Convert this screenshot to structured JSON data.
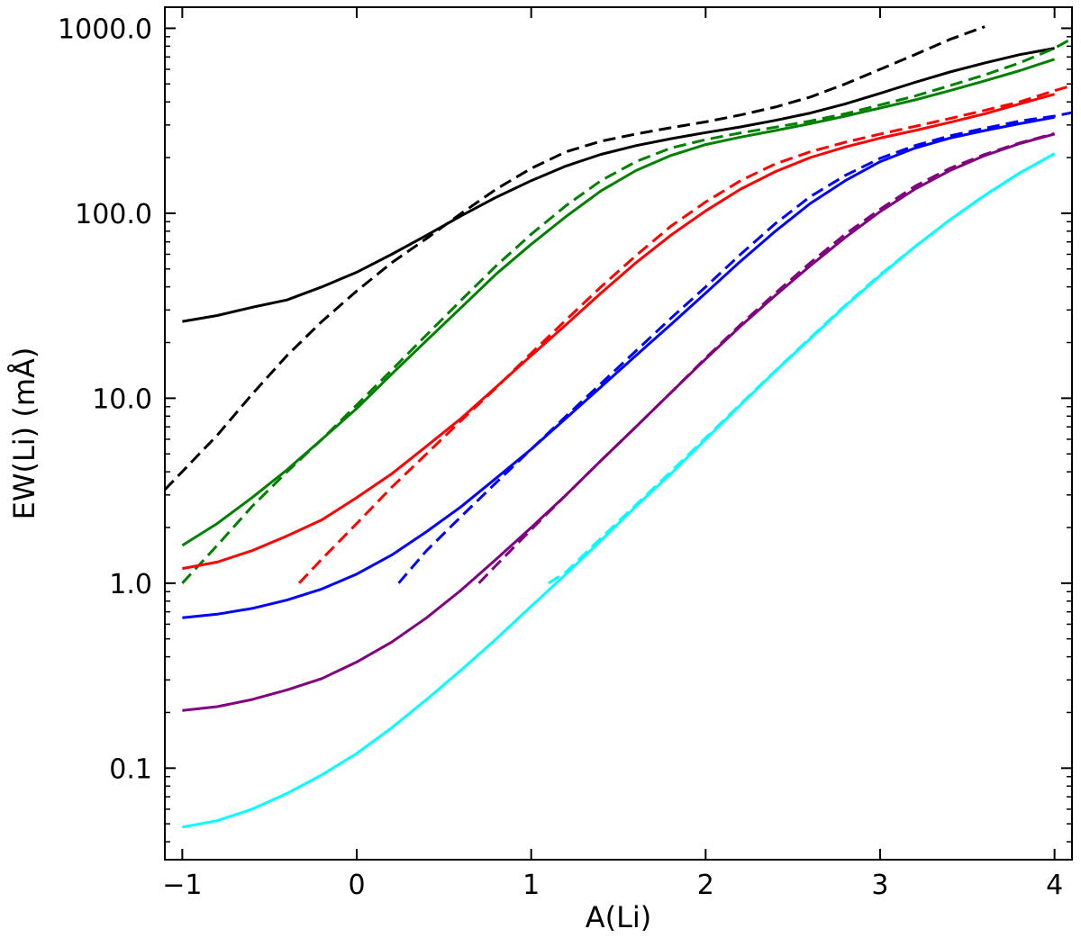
{
  "chart_data": {
    "type": "line",
    "title": "",
    "xlabel": "A(Li)",
    "ylabel": "EW(Li) (mÅ)",
    "xlim": [
      -1.1,
      4.1
    ],
    "ylim": [
      0.032,
      1300
    ],
    "yscale": "log",
    "grid": false,
    "legend": "none",
    "xticks": [
      -1,
      0,
      1,
      2,
      3,
      4
    ],
    "xtick_labels": [
      "−1",
      "0",
      "1",
      "2",
      "3",
      "4"
    ],
    "yticks": [
      0.1,
      1,
      10,
      100,
      1000
    ],
    "ytick_labels": [
      "0.1",
      "1.0",
      "10.0",
      "100.0",
      "1000.0"
    ],
    "series": [
      {
        "color": "#000000",
        "style": "solid",
        "x": [
          -1,
          -0.8,
          -0.6,
          -0.4,
          -0.2,
          0,
          0.2,
          0.4,
          0.6,
          0.8,
          1.0,
          1.2,
          1.4,
          1.6,
          1.8,
          2.0,
          2.2,
          2.4,
          2.6,
          2.8,
          3.0,
          3.2,
          3.4,
          3.6,
          3.8,
          4.0
        ],
        "y": [
          26,
          28,
          31,
          34,
          40,
          48,
          60,
          76,
          97,
          122,
          150,
          180,
          208,
          232,
          253,
          273,
          293,
          318,
          348,
          390,
          445,
          510,
          580,
          650,
          720,
          780
        ]
      },
      {
        "color": "#000000",
        "style": "dashed",
        "x": [
          -1.1,
          -0.8,
          -0.6,
          -0.4,
          -0.2,
          0,
          0.2,
          0.4,
          0.6,
          0.8,
          1.0,
          1.2,
          1.4,
          1.6,
          1.8,
          2.0,
          2.2,
          2.4,
          2.6,
          2.8,
          3.0,
          3.2,
          3.4,
          3.6
        ],
        "y": [
          3.2,
          6.3,
          10.5,
          17,
          26,
          38,
          54,
          73,
          100,
          135,
          175,
          215,
          245,
          268,
          290,
          312,
          340,
          375,
          425,
          500,
          600,
          720,
          870,
          1020
        ]
      },
      {
        "color": "#008000",
        "style": "solid",
        "x": [
          -1,
          -0.8,
          -0.6,
          -0.4,
          -0.2,
          0,
          0.2,
          0.4,
          0.6,
          0.8,
          1.0,
          1.2,
          1.4,
          1.6,
          1.8,
          2.0,
          2.2,
          2.4,
          2.6,
          2.8,
          3.0,
          3.2,
          3.4,
          3.6,
          3.8,
          4.0
        ],
        "y": [
          1.6,
          2.1,
          2.9,
          4.1,
          6.0,
          8.8,
          13.5,
          20.5,
          31,
          47,
          68,
          96,
          132,
          170,
          205,
          235,
          258,
          280,
          305,
          335,
          370,
          410,
          460,
          520,
          590,
          680
        ]
      },
      {
        "color": "#008000",
        "style": "dashed",
        "x": [
          -1,
          -0.8,
          -0.6,
          -0.4,
          -0.2,
          0,
          0.2,
          0.4,
          0.6,
          0.8,
          1.0,
          1.2,
          1.4,
          1.6,
          1.8,
          2.0,
          2.2,
          2.4,
          2.6,
          2.8,
          3.0,
          3.2,
          3.4,
          3.6,
          3.8,
          4.0,
          4.1
        ],
        "y": [
          1.0,
          1.6,
          2.6,
          4.0,
          6.0,
          9.2,
          14.2,
          22,
          34,
          52,
          77,
          110,
          150,
          190,
          225,
          250,
          272,
          292,
          315,
          345,
          385,
          430,
          490,
          560,
          650,
          780,
          880
        ]
      },
      {
        "color": "#ff0000",
        "style": "solid",
        "x": [
          -1,
          -0.8,
          -0.6,
          -0.4,
          -0.2,
          0,
          0.2,
          0.4,
          0.6,
          0.8,
          1.0,
          1.2,
          1.4,
          1.6,
          1.8,
          2.0,
          2.2,
          2.4,
          2.6,
          2.8,
          3.0,
          3.2,
          3.4,
          3.6,
          3.8,
          4.0
        ],
        "y": [
          1.2,
          1.3,
          1.5,
          1.8,
          2.2,
          2.9,
          3.9,
          5.5,
          7.8,
          11.5,
          17,
          25,
          37,
          54,
          76,
          103,
          135,
          168,
          200,
          228,
          255,
          280,
          310,
          345,
          390,
          440
        ]
      },
      {
        "color": "#ff0000",
        "style": "dashed",
        "x": [
          -0.33,
          -0.2,
          0,
          0.2,
          0.4,
          0.6,
          0.8,
          1.0,
          1.2,
          1.4,
          1.6,
          1.8,
          2.0,
          2.2,
          2.4,
          2.6,
          2.8,
          3.0,
          3.2,
          3.4,
          3.6,
          3.8,
          4.0,
          4.1
        ],
        "y": [
          1.0,
          1.35,
          2.1,
          3.3,
          5.0,
          7.6,
          11.4,
          17.5,
          26.5,
          40,
          59,
          85,
          115,
          150,
          185,
          215,
          242,
          268,
          295,
          325,
          360,
          400,
          460,
          490
        ]
      },
      {
        "color": "#0000ff",
        "style": "solid",
        "x": [
          -1,
          -0.8,
          -0.6,
          -0.4,
          -0.2,
          0,
          0.2,
          0.4,
          0.6,
          0.8,
          1.0,
          1.2,
          1.4,
          1.6,
          1.8,
          2.0,
          2.2,
          2.4,
          2.6,
          2.8,
          3.0,
          3.2,
          3.4,
          3.6,
          3.8,
          4.0
        ],
        "y": [
          0.65,
          0.68,
          0.73,
          0.81,
          0.93,
          1.12,
          1.42,
          1.9,
          2.6,
          3.7,
          5.3,
          7.8,
          11.5,
          17,
          25,
          37,
          55,
          80,
          113,
          150,
          190,
          225,
          255,
          280,
          305,
          330
        ]
      },
      {
        "color": "#0000ff",
        "style": "dashed",
        "x": [
          0.24,
          0.4,
          0.6,
          0.8,
          1.0,
          1.2,
          1.4,
          1.6,
          1.8,
          2.0,
          2.2,
          2.4,
          2.6,
          2.8,
          3.0,
          3.2,
          3.4,
          3.6,
          3.8,
          4.0,
          4.1
        ],
        "y": [
          1.0,
          1.5,
          2.3,
          3.5,
          5.3,
          8.0,
          12.0,
          18.0,
          27,
          40,
          60,
          88,
          123,
          160,
          198,
          232,
          262,
          288,
          315,
          335,
          350
        ]
      },
      {
        "color": "#800080",
        "style": "solid",
        "x": [
          -1,
          -0.8,
          -0.6,
          -0.4,
          -0.2,
          0,
          0.2,
          0.4,
          0.6,
          0.8,
          1.0,
          1.2,
          1.4,
          1.6,
          1.8,
          2.0,
          2.2,
          2.4,
          2.6,
          2.8,
          3.0,
          3.2,
          3.4,
          3.6,
          3.8,
          4.0
        ],
        "y": [
          0.205,
          0.215,
          0.235,
          0.265,
          0.305,
          0.375,
          0.48,
          0.65,
          0.92,
          1.35,
          2.0,
          3.0,
          4.6,
          7.0,
          10.7,
          16.3,
          24.5,
          36,
          52,
          74,
          102,
          135,
          170,
          205,
          238,
          268
        ]
      },
      {
        "color": "#800080",
        "style": "dashed",
        "x": [
          0.7,
          0.8,
          1.0,
          1.2,
          1.4,
          1.6,
          1.8,
          2.0,
          2.2,
          2.4,
          2.6,
          2.8,
          3.0,
          3.2,
          3.4,
          3.6,
          3.8,
          4.0
        ],
        "y": [
          1.0,
          1.25,
          1.95,
          3.0,
          4.6,
          7.0,
          10.7,
          16.5,
          25,
          37,
          54,
          77,
          105,
          140,
          175,
          208,
          240,
          270
        ]
      },
      {
        "color": "#00ffff",
        "style": "solid",
        "x": [
          -1,
          -0.8,
          -0.6,
          -0.4,
          -0.2,
          0,
          0.2,
          0.4,
          0.6,
          0.8,
          1.0,
          1.2,
          1.4,
          1.6,
          1.8,
          2.0,
          2.2,
          2.4,
          2.6,
          2.8,
          3.0,
          3.2,
          3.4,
          3.6,
          3.8,
          4.0
        ],
        "y": [
          0.048,
          0.052,
          0.06,
          0.073,
          0.092,
          0.12,
          0.165,
          0.235,
          0.34,
          0.5,
          0.75,
          1.12,
          1.7,
          2.6,
          3.9,
          6.0,
          9.2,
          14,
          21,
          31.5,
          46,
          66,
          92,
          125,
          165,
          210
        ]
      },
      {
        "color": "#00ffff",
        "style": "dashed",
        "x": [
          1.1,
          1.2,
          1.4,
          1.6,
          1.8,
          2.0,
          2.2,
          2.4,
          2.6,
          2.8,
          3.0,
          3.2,
          3.4,
          3.6,
          3.8,
          4.0
        ],
        "y": [
          1.0,
          1.15,
          1.75,
          2.65,
          4.0,
          6.1,
          9.3,
          14.1,
          21.2,
          31.8,
          46.5,
          66,
          92,
          125,
          165,
          210
        ]
      }
    ]
  }
}
